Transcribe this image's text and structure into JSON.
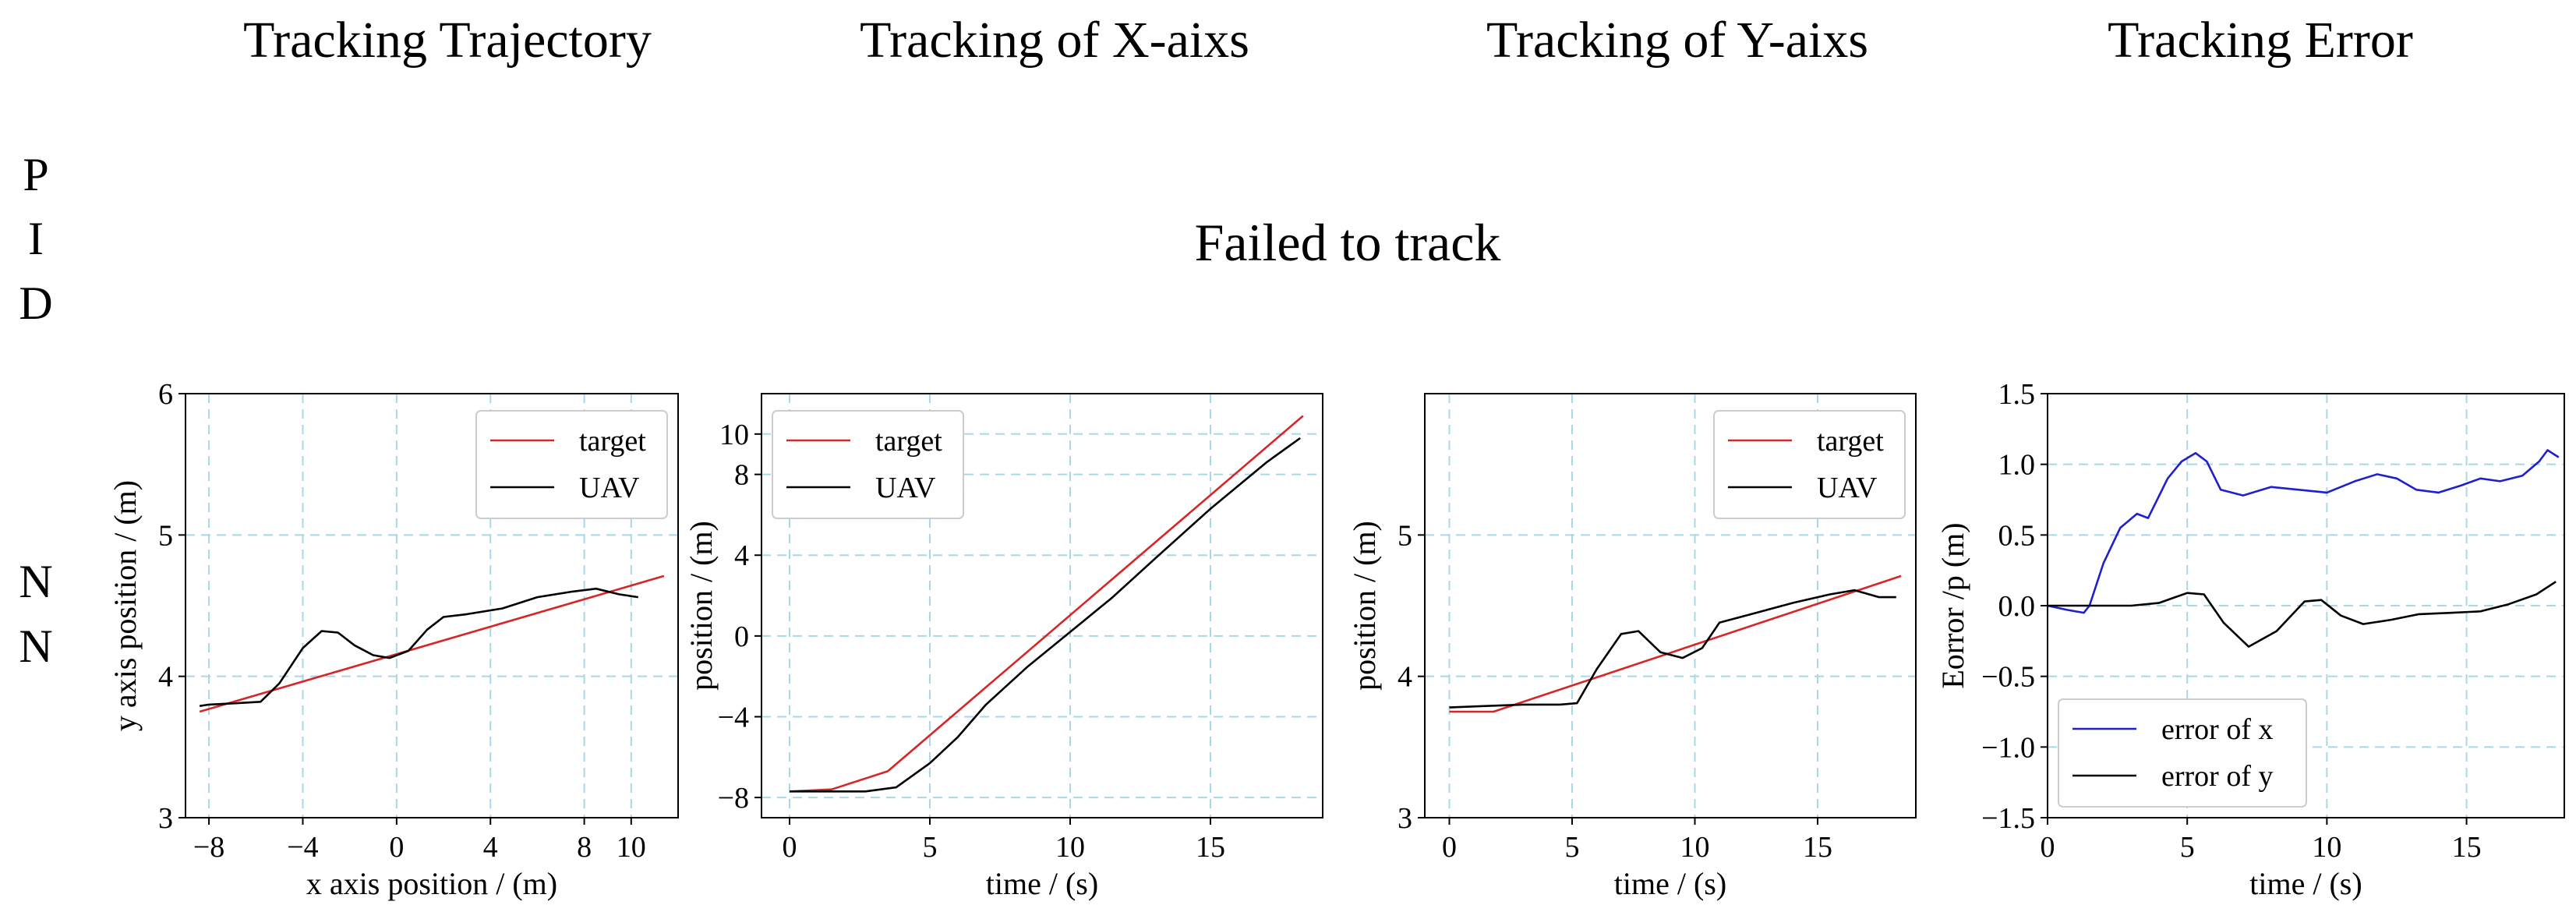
{
  "column_titles": [
    "Tracking Trajectory",
    "Tracking of X-aixs",
    "Tracking of Y-aixs",
    "Tracking Error"
  ],
  "row_labels": {
    "pid": [
      "P",
      "I",
      "D"
    ],
    "nn": [
      "N",
      "N"
    ]
  },
  "pid_message": "Failed to track",
  "colors": {
    "target": "#d62728",
    "uav": "#000000",
    "error_x": "#1f1fd0",
    "error_y": "#000000",
    "grid": "#a8d8e8"
  },
  "chart_data": [
    {
      "type": "line",
      "xlabel": "x axis position / (m)",
      "ylabel": "y axis position / (m)",
      "xlim": [
        -9,
        12
      ],
      "ylim": [
        3,
        6
      ],
      "xticks": [
        -8,
        -4,
        0,
        4,
        8,
        10
      ],
      "xtick_labels": [
        "−8",
        "−4",
        "0",
        "4",
        "8",
        "10"
      ],
      "yticks": [
        3,
        4,
        5,
        6
      ],
      "ytick_labels": [
        "3",
        "4",
        "5",
        "6"
      ],
      "grid": true,
      "legend": "top-right",
      "series": [
        {
          "name": "target",
          "color": "#d62728",
          "x": [
            -8.4,
            11.4
          ],
          "y": [
            3.75,
            4.71
          ]
        },
        {
          "name": "UAV",
          "color": "#000000",
          "x": [
            -8.4,
            -8,
            -6.8,
            -5.8,
            -5,
            -4,
            -3.2,
            -2.5,
            -1.8,
            -1,
            -0.3,
            0.5,
            1.3,
            2,
            3,
            4.5,
            6,
            7.5,
            8.5,
            9.5,
            10.3
          ],
          "y": [
            3.79,
            3.8,
            3.81,
            3.82,
            3.95,
            4.2,
            4.32,
            4.31,
            4.22,
            4.15,
            4.13,
            4.18,
            4.33,
            4.42,
            4.44,
            4.48,
            4.56,
            4.6,
            4.62,
            4.58,
            4.56
          ]
        }
      ]
    },
    {
      "type": "line",
      "xlabel": "time / (s)",
      "ylabel": "position / (m)",
      "xlim": [
        -1,
        19
      ],
      "ylim": [
        -9,
        12
      ],
      "xticks": [
        0,
        5,
        10,
        15
      ],
      "xtick_labels": [
        "0",
        "5",
        "10",
        "15"
      ],
      "yticks": [
        -8,
        -4,
        0,
        4,
        8,
        10
      ],
      "ytick_labels": [
        "−8",
        "−4",
        "0",
        "4",
        "8",
        "10"
      ],
      "grid": true,
      "legend": "top-left",
      "series": [
        {
          "name": "target",
          "color": "#d62728",
          "x": [
            0,
            1.5,
            3.5,
            18.3
          ],
          "y": [
            -7.7,
            -7.6,
            -6.7,
            10.9
          ]
        },
        {
          "name": "UAV",
          "color": "#000000",
          "x": [
            0,
            1.5,
            2.7,
            3.8,
            5,
            6,
            7,
            8.5,
            10,
            11.5,
            13,
            15,
            17,
            18.2
          ],
          "y": [
            -7.7,
            -7.7,
            -7.7,
            -7.5,
            -6.3,
            -5.0,
            -3.4,
            -1.5,
            0.2,
            1.9,
            3.8,
            6.3,
            8.6,
            9.8
          ]
        }
      ]
    },
    {
      "type": "line",
      "xlabel": "time / (s)",
      "ylabel": "position / (m)",
      "xlim": [
        -1,
        19
      ],
      "ylim": [
        3,
        6
      ],
      "xticks": [
        0,
        5,
        10,
        15
      ],
      "xtick_labels": [
        "0",
        "5",
        "10",
        "15"
      ],
      "yticks": [
        3,
        4,
        5
      ],
      "ytick_labels": [
        "3",
        "4",
        "5"
      ],
      "grid": true,
      "legend": "top-right",
      "series": [
        {
          "name": "target",
          "color": "#d62728",
          "x": [
            0,
            1.8,
            18.4
          ],
          "y": [
            3.75,
            3.75,
            4.71
          ]
        },
        {
          "name": "UAV",
          "color": "#000000",
          "x": [
            0,
            1.5,
            3,
            4.5,
            5.2,
            6,
            7,
            7.7,
            8.6,
            9.5,
            10.3,
            11,
            12.5,
            14,
            15.5,
            16.5,
            17.5,
            18.2
          ],
          "y": [
            3.78,
            3.79,
            3.8,
            3.8,
            3.81,
            4.05,
            4.3,
            4.32,
            4.17,
            4.13,
            4.2,
            4.38,
            4.45,
            4.52,
            4.58,
            4.61,
            4.56,
            4.56
          ]
        }
      ]
    },
    {
      "type": "line",
      "xlabel": "time / (s)",
      "ylabel": "Eorror /p (m)",
      "xlim": [
        0,
        18.5
      ],
      "ylim": [
        -1.5,
        1.5
      ],
      "xticks": [
        0,
        5,
        10,
        15
      ],
      "xtick_labels": [
        "0",
        "5",
        "10",
        "15"
      ],
      "yticks": [
        -1.5,
        -1.0,
        -0.5,
        0.0,
        0.5,
        1.0,
        1.5
      ],
      "ytick_labels": [
        "−1.5",
        "−1.0",
        "−0.5",
        "0.0",
        "0.5",
        "1.0",
        "1.5"
      ],
      "grid": true,
      "legend": "bottom-left",
      "series": [
        {
          "name": "error of x",
          "color": "#1f1fd0",
          "x": [
            0,
            0.7,
            1.3,
            1.5,
            2.0,
            2.6,
            3.2,
            3.6,
            3.8,
            4.3,
            4.8,
            5.3,
            5.7,
            6.2,
            7.0,
            8.0,
            9.0,
            10.0,
            11.0,
            11.8,
            12.5,
            13.2,
            14.0,
            14.8,
            15.5,
            16.2,
            17.0,
            17.6,
            17.9,
            18.3
          ],
          "y": [
            0.0,
            -0.03,
            -0.05,
            0.0,
            0.3,
            0.55,
            0.65,
            0.62,
            0.7,
            0.9,
            1.02,
            1.08,
            1.02,
            0.82,
            0.78,
            0.84,
            0.82,
            0.8,
            0.88,
            0.93,
            0.9,
            0.82,
            0.8,
            0.85,
            0.9,
            0.88,
            0.92,
            1.02,
            1.1,
            1.05
          ]
        },
        {
          "name": "error of y",
          "color": "#000000",
          "x": [
            0,
            1.5,
            3,
            4,
            5,
            5.6,
            6.3,
            7.2,
            8.2,
            9.2,
            9.8,
            10.5,
            11.3,
            12.3,
            13.3,
            14.5,
            15.5,
            16.5,
            17.5,
            18.2
          ],
          "y": [
            0.0,
            0.0,
            0.0,
            0.02,
            0.09,
            0.08,
            -0.12,
            -0.29,
            -0.18,
            0.03,
            0.04,
            -0.07,
            -0.13,
            -0.1,
            -0.06,
            -0.05,
            -0.04,
            0.01,
            0.08,
            0.17
          ]
        }
      ]
    }
  ]
}
